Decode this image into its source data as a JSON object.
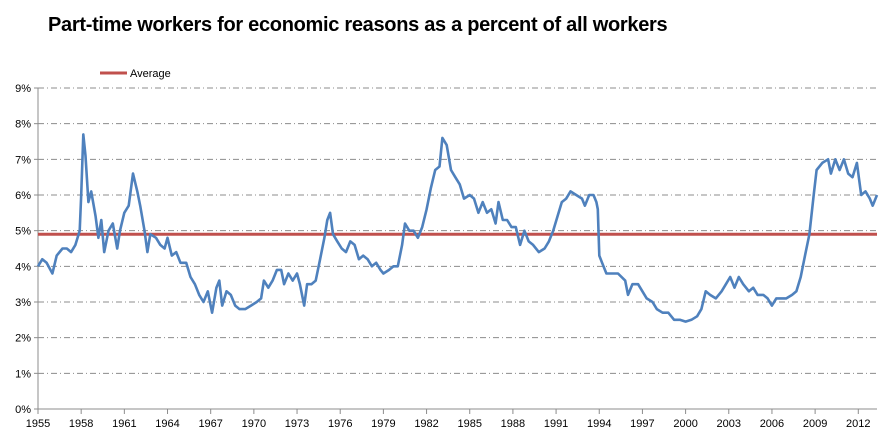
{
  "chart_data": {
    "type": "line",
    "title": "Part-time workers for economic reasons as a percent of all workers",
    "xlabel": "",
    "ylabel": "",
    "xlim": [
      1955,
      2013.3
    ],
    "ylim": [
      0,
      9
    ],
    "x_ticks": [
      "1955",
      "1958",
      "1961",
      "1964",
      "1967",
      "1970",
      "1973",
      "1976",
      "1979",
      "1982",
      "1985",
      "1988",
      "1991",
      "1994",
      "1997",
      "2000",
      "2003",
      "2006",
      "2009",
      "2012"
    ],
    "y_ticks": [
      "0%",
      "1%",
      "2%",
      "3%",
      "4%",
      "5%",
      "6%",
      "7%",
      "8%",
      "9%"
    ],
    "grid": "horizontal dash-dot",
    "legend": {
      "placement": "top-left",
      "entries": [
        {
          "name": "Average",
          "color": "#c0504d"
        }
      ]
    },
    "average": {
      "name": "Average",
      "value": 4.9,
      "color": "#c0504d"
    },
    "series": [
      {
        "color": "#4f81bd",
        "points": [
          [
            1955.0,
            4.0
          ],
          [
            1955.3,
            4.2
          ],
          [
            1955.6,
            4.1
          ],
          [
            1956.0,
            3.8
          ],
          [
            1956.3,
            4.3
          ],
          [
            1956.7,
            4.5
          ],
          [
            1957.0,
            4.5
          ],
          [
            1957.3,
            4.4
          ],
          [
            1957.6,
            4.6
          ],
          [
            1957.9,
            5.0
          ],
          [
            1958.0,
            6.0
          ],
          [
            1958.15,
            7.7
          ],
          [
            1958.3,
            7.1
          ],
          [
            1958.5,
            5.8
          ],
          [
            1958.7,
            6.1
          ],
          [
            1959.0,
            5.4
          ],
          [
            1959.2,
            4.8
          ],
          [
            1959.4,
            5.3
          ],
          [
            1959.6,
            4.4
          ],
          [
            1959.9,
            5.0
          ],
          [
            1960.2,
            5.2
          ],
          [
            1960.5,
            4.5
          ],
          [
            1960.7,
            5.0
          ],
          [
            1961.0,
            5.5
          ],
          [
            1961.3,
            5.7
          ],
          [
            1961.6,
            6.6
          ],
          [
            1961.9,
            6.1
          ],
          [
            1962.1,
            5.7
          ],
          [
            1962.4,
            5.0
          ],
          [
            1962.6,
            4.4
          ],
          [
            1962.8,
            4.9
          ],
          [
            1963.2,
            4.8
          ],
          [
            1963.5,
            4.6
          ],
          [
            1963.8,
            4.5
          ],
          [
            1964.0,
            4.8
          ],
          [
            1964.3,
            4.3
          ],
          [
            1964.6,
            4.4
          ],
          [
            1964.9,
            4.1
          ],
          [
            1965.3,
            4.1
          ],
          [
            1965.6,
            3.7
          ],
          [
            1965.9,
            3.5
          ],
          [
            1966.2,
            3.2
          ],
          [
            1966.5,
            3.0
          ],
          [
            1966.8,
            3.3
          ],
          [
            1967.1,
            2.7
          ],
          [
            1967.4,
            3.4
          ],
          [
            1967.6,
            3.6
          ],
          [
            1967.8,
            2.9
          ],
          [
            1968.1,
            3.3
          ],
          [
            1968.4,
            3.2
          ],
          [
            1968.7,
            2.9
          ],
          [
            1969.0,
            2.8
          ],
          [
            1969.4,
            2.8
          ],
          [
            1969.8,
            2.9
          ],
          [
            1970.2,
            3.0
          ],
          [
            1970.5,
            3.1
          ],
          [
            1970.7,
            3.6
          ],
          [
            1971.0,
            3.4
          ],
          [
            1971.3,
            3.6
          ],
          [
            1971.6,
            3.9
          ],
          [
            1971.9,
            3.9
          ],
          [
            1972.1,
            3.5
          ],
          [
            1972.4,
            3.8
          ],
          [
            1972.7,
            3.6
          ],
          [
            1973.0,
            3.8
          ],
          [
            1973.2,
            3.5
          ],
          [
            1973.5,
            2.9
          ],
          [
            1973.7,
            3.5
          ],
          [
            1974.0,
            3.5
          ],
          [
            1974.3,
            3.6
          ],
          [
            1974.6,
            4.2
          ],
          [
            1974.9,
            4.8
          ],
          [
            1975.1,
            5.3
          ],
          [
            1975.3,
            5.5
          ],
          [
            1975.5,
            4.9
          ],
          [
            1975.8,
            4.7
          ],
          [
            1976.1,
            4.5
          ],
          [
            1976.4,
            4.4
          ],
          [
            1976.7,
            4.7
          ],
          [
            1977.0,
            4.6
          ],
          [
            1977.3,
            4.2
          ],
          [
            1977.6,
            4.3
          ],
          [
            1977.9,
            4.2
          ],
          [
            1978.2,
            4.0
          ],
          [
            1978.5,
            4.1
          ],
          [
            1978.8,
            3.9
          ],
          [
            1979.0,
            3.8
          ],
          [
            1979.4,
            3.9
          ],
          [
            1979.7,
            4.0
          ],
          [
            1980.0,
            4.0
          ],
          [
            1980.3,
            4.6
          ],
          [
            1980.5,
            5.2
          ],
          [
            1980.8,
            5.0
          ],
          [
            1981.1,
            5.0
          ],
          [
            1981.4,
            4.8
          ],
          [
            1981.7,
            5.1
          ],
          [
            1982.0,
            5.6
          ],
          [
            1982.3,
            6.2
          ],
          [
            1982.6,
            6.7
          ],
          [
            1982.9,
            6.8
          ],
          [
            1983.1,
            7.6
          ],
          [
            1983.4,
            7.4
          ],
          [
            1983.7,
            6.7
          ],
          [
            1984.0,
            6.5
          ],
          [
            1984.3,
            6.3
          ],
          [
            1984.6,
            5.9
          ],
          [
            1985.0,
            6.0
          ],
          [
            1985.3,
            5.9
          ],
          [
            1985.6,
            5.5
          ],
          [
            1985.9,
            5.8
          ],
          [
            1986.2,
            5.5
          ],
          [
            1986.5,
            5.6
          ],
          [
            1986.8,
            5.2
          ],
          [
            1987.0,
            5.8
          ],
          [
            1987.3,
            5.3
          ],
          [
            1987.6,
            5.3
          ],
          [
            1987.9,
            5.1
          ],
          [
            1988.2,
            5.1
          ],
          [
            1988.5,
            4.6
          ],
          [
            1988.8,
            5.0
          ],
          [
            1989.1,
            4.7
          ],
          [
            1989.4,
            4.6
          ],
          [
            1989.8,
            4.4
          ],
          [
            1990.2,
            4.5
          ],
          [
            1990.5,
            4.7
          ],
          [
            1990.8,
            5.0
          ],
          [
            1991.1,
            5.4
          ],
          [
            1991.4,
            5.8
          ],
          [
            1991.7,
            5.9
          ],
          [
            1992.0,
            6.1
          ],
          [
            1992.4,
            6.0
          ],
          [
            1992.8,
            5.9
          ],
          [
            1993.0,
            5.7
          ],
          [
            1993.3,
            6.0
          ],
          [
            1993.6,
            6.0
          ],
          [
            1993.8,
            5.8
          ],
          [
            1993.9,
            5.6
          ],
          [
            1994.0,
            4.3
          ],
          [
            1994.2,
            4.1
          ],
          [
            1994.5,
            3.8
          ],
          [
            1994.9,
            3.8
          ],
          [
            1995.3,
            3.8
          ],
          [
            1995.8,
            3.6
          ],
          [
            1996.0,
            3.2
          ],
          [
            1996.3,
            3.5
          ],
          [
            1996.7,
            3.5
          ],
          [
            1997.0,
            3.3
          ],
          [
            1997.3,
            3.1
          ],
          [
            1997.7,
            3.0
          ],
          [
            1998.0,
            2.8
          ],
          [
            1998.4,
            2.7
          ],
          [
            1998.8,
            2.7
          ],
          [
            1999.2,
            2.5
          ],
          [
            1999.6,
            2.5
          ],
          [
            2000.0,
            2.45
          ],
          [
            2000.4,
            2.5
          ],
          [
            2000.8,
            2.6
          ],
          [
            2001.1,
            2.8
          ],
          [
            2001.4,
            3.3
          ],
          [
            2001.7,
            3.2
          ],
          [
            2002.1,
            3.1
          ],
          [
            2002.5,
            3.3
          ],
          [
            2002.8,
            3.5
          ],
          [
            2003.1,
            3.7
          ],
          [
            2003.4,
            3.4
          ],
          [
            2003.7,
            3.7
          ],
          [
            2004.0,
            3.5
          ],
          [
            2004.4,
            3.3
          ],
          [
            2004.7,
            3.4
          ],
          [
            2005.0,
            3.2
          ],
          [
            2005.4,
            3.2
          ],
          [
            2005.7,
            3.1
          ],
          [
            2006.0,
            2.9
          ],
          [
            2006.3,
            3.1
          ],
          [
            2006.7,
            3.1
          ],
          [
            2007.0,
            3.1
          ],
          [
            2007.4,
            3.2
          ],
          [
            2007.7,
            3.3
          ],
          [
            2008.0,
            3.7
          ],
          [
            2008.3,
            4.3
          ],
          [
            2008.6,
            4.9
          ],
          [
            2008.9,
            6.0
          ],
          [
            2009.1,
            6.7
          ],
          [
            2009.5,
            6.9
          ],
          [
            2009.9,
            7.0
          ],
          [
            2010.1,
            6.6
          ],
          [
            2010.4,
            7.0
          ],
          [
            2010.7,
            6.7
          ],
          [
            2011.0,
            7.0
          ],
          [
            2011.3,
            6.6
          ],
          [
            2011.6,
            6.5
          ],
          [
            2011.9,
            6.9
          ],
          [
            2012.2,
            6.0
          ],
          [
            2012.5,
            6.1
          ],
          [
            2012.8,
            5.9
          ],
          [
            2013.0,
            5.7
          ],
          [
            2013.3,
            6.0
          ]
        ]
      }
    ]
  }
}
